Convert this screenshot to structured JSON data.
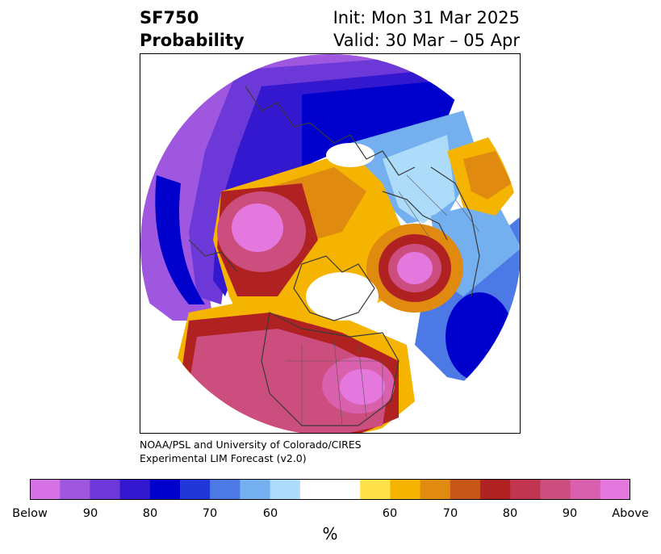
{
  "header": {
    "left_line1": "SF750",
    "left_line2": "Probability",
    "right_line1": "Init: Mon 31 Mar 2025",
    "right_line2": "Valid: 30 Mar – 05 Apr"
  },
  "credit": {
    "line1": "NOAA/PSL and University of Colorado/CIRES",
    "line2": "Experimental LIM Forecast (v2.0)"
  },
  "colorbar": {
    "unit": "%",
    "colors": [
      "#d772e6",
      "#9f57e0",
      "#6c38d8",
      "#3418d0",
      "#0000cc",
      "#2137d8",
      "#4c79e6",
      "#74b0f0",
      "#acdcfa",
      "#ffffff",
      "#ffffff",
      "#ffe14a",
      "#f4b400",
      "#e08a10",
      "#c85618",
      "#b02222",
      "#c23550",
      "#cc4e7f",
      "#d960ad",
      "#e478de"
    ],
    "ticks": [
      "Below",
      "90",
      "80",
      "70",
      "60",
      "60",
      "70",
      "80",
      "90",
      "Above"
    ]
  },
  "map": {
    "projection": "north-polar-stereographic",
    "colors": {
      "below_strong": "#9f57e0",
      "below_mid": "#3418d0",
      "below_core": "#0000cc",
      "below_light": "#74b0f0",
      "above_light": "#f4b400",
      "above_mid": "#b02222",
      "above_strong": "#cc4e7f",
      "above_core": "#e478de"
    }
  }
}
